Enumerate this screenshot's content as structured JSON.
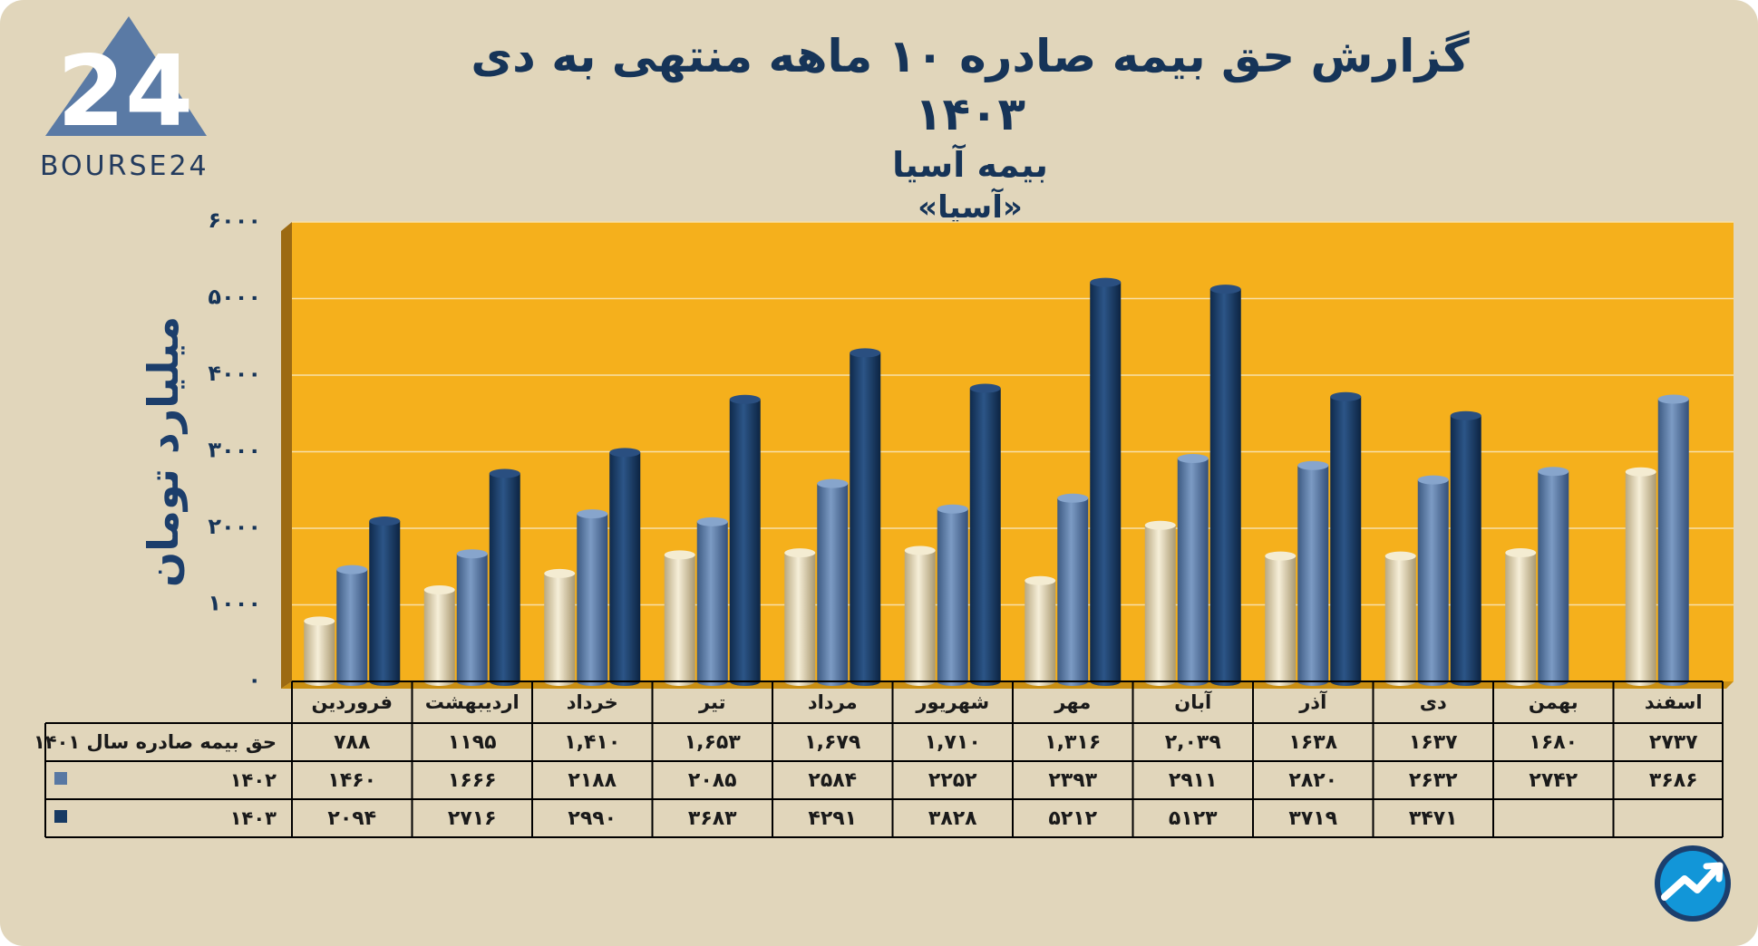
{
  "header": {
    "title": "گزارش  حق بیمه صادره ۱۰ ماهه منتهی به دی ۱۴۰۳",
    "subtitle": "بیمه آسیا",
    "ticker": "«آسیا»"
  },
  "logo": {
    "text": "BOURSE24",
    "mark": "24",
    "icon": "triangle-24-logo"
  },
  "badge": {
    "icon": "trend-arrow-circle-icon"
  },
  "colors": {
    "background": "#e1d6bb",
    "plot": "#f5b01c",
    "s1401": "#e9dfc0",
    "s1402": "#5878a3",
    "s1403": "#173a63",
    "text": "#163458"
  },
  "chart_data": {
    "type": "bar",
    "ylabel": "میلیارد تومان",
    "ylim": [
      0,
      6000
    ],
    "yticks": [
      "۰",
      "۱۰۰۰",
      "۲۰۰۰",
      "۳۰۰۰",
      "۴۰۰۰",
      "۵۰۰۰",
      "۶۰۰۰"
    ],
    "categories": [
      "فروردین",
      "اردیبهشت",
      "خرداد",
      "تیر",
      "مرداد",
      "شهریور",
      "مهر",
      "آبان",
      "آذر",
      "دی",
      "بهمن",
      "اسفند"
    ],
    "series": [
      {
        "name": "حق بیمه صادره سال ۱۴۰۱",
        "values": [
          788,
          1195,
          1410,
          1653,
          1679,
          1710,
          1316,
          2039,
          1638,
          1637,
          1680,
          2737
        ],
        "labels": [
          "۷۸۸",
          "۱۱۹۵",
          "۱,۴۱۰",
          "۱,۶۵۳",
          "۱,۶۷۹",
          "۱,۷۱۰",
          "۱,۳۱۶",
          "۲,۰۳۹",
          "۱۶۳۸",
          "۱۶۳۷",
          "۱۶۸۰",
          "۲۷۳۷"
        ]
      },
      {
        "name": "۱۴۰۲",
        "values": [
          1460,
          1666,
          2188,
          2085,
          2584,
          2252,
          2393,
          2911,
          2820,
          2632,
          2742,
          3686
        ],
        "labels": [
          "۱۴۶۰",
          "۱۶۶۶",
          "۲۱۸۸",
          "۲۰۸۵",
          "۲۵۸۴",
          "۲۲۵۲",
          "۲۳۹۳",
          "۲۹۱۱",
          "۲۸۲۰",
          "۲۶۳۲",
          "۲۷۴۲",
          "۳۶۸۶"
        ]
      },
      {
        "name": "۱۴۰۳",
        "values": [
          2094,
          2716,
          2990,
          3683,
          4291,
          3828,
          5212,
          5123,
          3719,
          3471,
          null,
          null
        ],
        "labels": [
          "۲۰۹۴",
          "۲۷۱۶",
          "۲۹۹۰",
          "۳۶۸۳",
          "۴۲۹۱",
          "۳۸۲۸",
          "۵۲۱۲",
          "۵۱۲۳",
          "۳۷۱۹",
          "۳۴۷۱",
          "",
          ""
        ]
      }
    ],
    "grid": true,
    "legend": "data-table-left"
  }
}
